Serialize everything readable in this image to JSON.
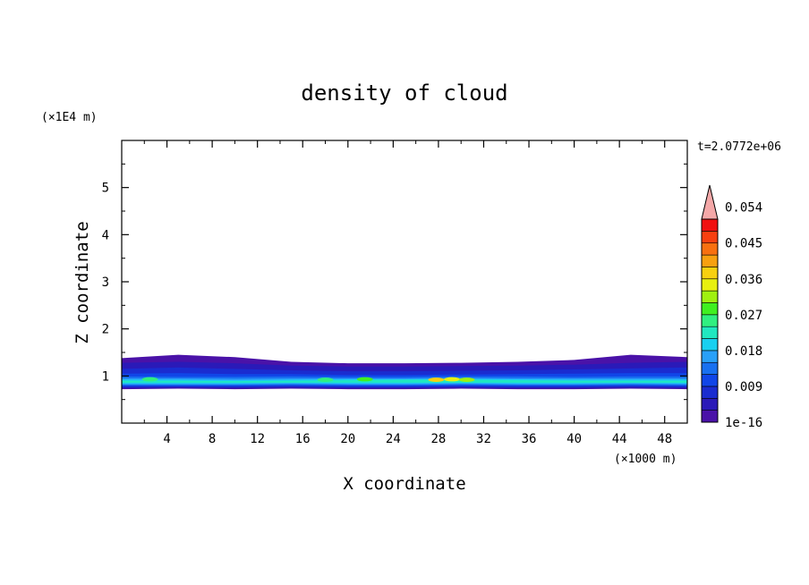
{
  "chart_data": {
    "type": "heatmap",
    "title": "density of cloud",
    "xlabel": "X coordinate",
    "ylabel": "Z coordinate",
    "x_unit": "(×1000 m)",
    "y_unit": "(×1E4 m)",
    "time_label": "t=2.0772e+06",
    "xlim": [
      0,
      50
    ],
    "ylim": [
      0,
      6
    ],
    "x_ticks": [
      "4",
      "8",
      "12",
      "16",
      "20",
      "24",
      "28",
      "32",
      "36",
      "40",
      "44",
      "48"
    ],
    "y_ticks": [
      "1",
      "2",
      "3",
      "4",
      "5"
    ],
    "colorbar": {
      "tick_labels": [
        "1e-16",
        "0.009",
        "0.018",
        "0.027",
        "0.036",
        "0.045",
        "0.054"
      ],
      "colors": [
        "#4a12a8",
        "#2a1ab8",
        "#1a2cd0",
        "#1046e8",
        "#1870f0",
        "#28a0f8",
        "#18d0f0",
        "#20e8c0",
        "#30f080",
        "#40f020",
        "#a0f010",
        "#e8f010",
        "#f8d010",
        "#f8a010",
        "#f87010",
        "#f84010",
        "#f01010"
      ],
      "extend_color": "#f4a8a8"
    },
    "field_layers": [
      {
        "level": 1,
        "bottom": [
          0.72,
          0.73,
          0.72,
          0.73,
          0.72,
          0.72,
          0.73,
          0.72,
          0.72,
          0.73,
          0.72
        ],
        "top": [
          1.38,
          1.45,
          1.4,
          1.3,
          1.27,
          1.27,
          1.28,
          1.3,
          1.34,
          1.45,
          1.4
        ]
      },
      {
        "level": 2,
        "bottom": [
          0.74,
          0.75,
          0.74,
          0.75,
          0.74,
          0.74,
          0.75,
          0.74,
          0.74,
          0.75,
          0.74
        ],
        "top": [
          1.28,
          1.3,
          1.27,
          1.22,
          1.2,
          1.2,
          1.21,
          1.22,
          1.24,
          1.28,
          1.3
        ]
      },
      {
        "level": 3,
        "bottom": [
          0.76,
          0.77,
          0.76,
          0.77,
          0.76,
          0.76,
          0.77,
          0.76,
          0.76,
          0.77,
          0.76
        ],
        "top": [
          1.15,
          1.18,
          1.15,
          1.12,
          1.1,
          1.1,
          1.11,
          1.12,
          1.14,
          1.16,
          1.18
        ]
      },
      {
        "level": 4,
        "bottom": [
          0.78,
          0.78,
          0.78,
          0.79,
          0.78,
          0.78,
          0.79,
          0.78,
          0.78,
          0.79,
          0.78
        ],
        "top": [
          1.05,
          1.06,
          1.04,
          1.04,
          1.02,
          1.02,
          1.03,
          1.04,
          1.05,
          1.06,
          1.06
        ]
      },
      {
        "level": 5,
        "bottom": [
          0.8,
          0.8,
          0.8,
          0.81,
          0.8,
          0.8,
          0.81,
          0.8,
          0.8,
          0.81,
          0.8
        ],
        "top": [
          0.99,
          0.98,
          0.98,
          0.99,
          0.98,
          0.98,
          0.99,
          0.99,
          0.98,
          0.99,
          0.99
        ]
      },
      {
        "level": 6,
        "bottom": [
          0.82,
          0.82,
          0.82,
          0.83,
          0.82,
          0.82,
          0.83,
          0.82,
          0.82,
          0.83,
          0.82
        ],
        "top": [
          0.95,
          0.95,
          0.94,
          0.95,
          0.95,
          0.95,
          0.96,
          0.95,
          0.95,
          0.95,
          0.95
        ]
      },
      {
        "level": 7,
        "bottom": [
          0.84,
          0.84,
          0.84,
          0.85,
          0.84,
          0.84,
          0.85,
          0.84,
          0.84,
          0.85,
          0.84
        ],
        "top": [
          0.92,
          0.92,
          0.91,
          0.92,
          0.93,
          0.93,
          0.94,
          0.93,
          0.92,
          0.92,
          0.92
        ]
      },
      {
        "level": 8,
        "bottom": [
          0.86,
          0.86,
          0.86,
          0.86,
          0.86,
          0.86,
          0.86,
          0.86,
          0.86,
          0.86,
          0.86
        ],
        "top": [
          0.9,
          0.9,
          0.89,
          0.9,
          0.91,
          0.92,
          0.92,
          0.91,
          0.9,
          0.9,
          0.9
        ]
      }
    ],
    "hotspots": [
      {
        "x": 27.8,
        "z": 0.92,
        "level": 13
      },
      {
        "x": 29.2,
        "z": 0.93,
        "level": 12
      },
      {
        "x": 30.5,
        "z": 0.92,
        "level": 11
      },
      {
        "x": 21.5,
        "z": 0.93,
        "level": 10
      },
      {
        "x": 2.5,
        "z": 0.93,
        "level": 9
      },
      {
        "x": 18.0,
        "z": 0.92,
        "level": 9
      }
    ]
  }
}
